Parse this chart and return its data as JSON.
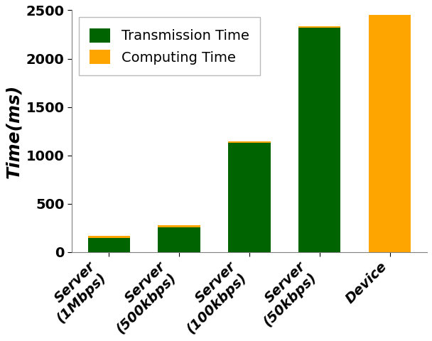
{
  "categories": [
    "Server\n(1Mbps)",
    "Server\n(500kbps)",
    "Server\n(100kbps)",
    "Server\n(50kbps)",
    "Device"
  ],
  "transmission_values": [
    150,
    255,
    1130,
    2320,
    0
  ],
  "computing_values": [
    18,
    22,
    18,
    18,
    2450
  ],
  "bar_width": 0.6,
  "transmission_color": "#006400",
  "computing_color": "#FFA500",
  "ylabel": "Time(ms)",
  "ylim": [
    0,
    2500
  ],
  "yticks": [
    0,
    500,
    1000,
    1500,
    2000,
    2500
  ],
  "legend_transmission": "Transmission Time",
  "legend_computing": "Computing Time",
  "ylabel_fontsize": 18,
  "tick_fontsize": 14,
  "legend_fontsize": 14,
  "background_color": "#ffffff"
}
